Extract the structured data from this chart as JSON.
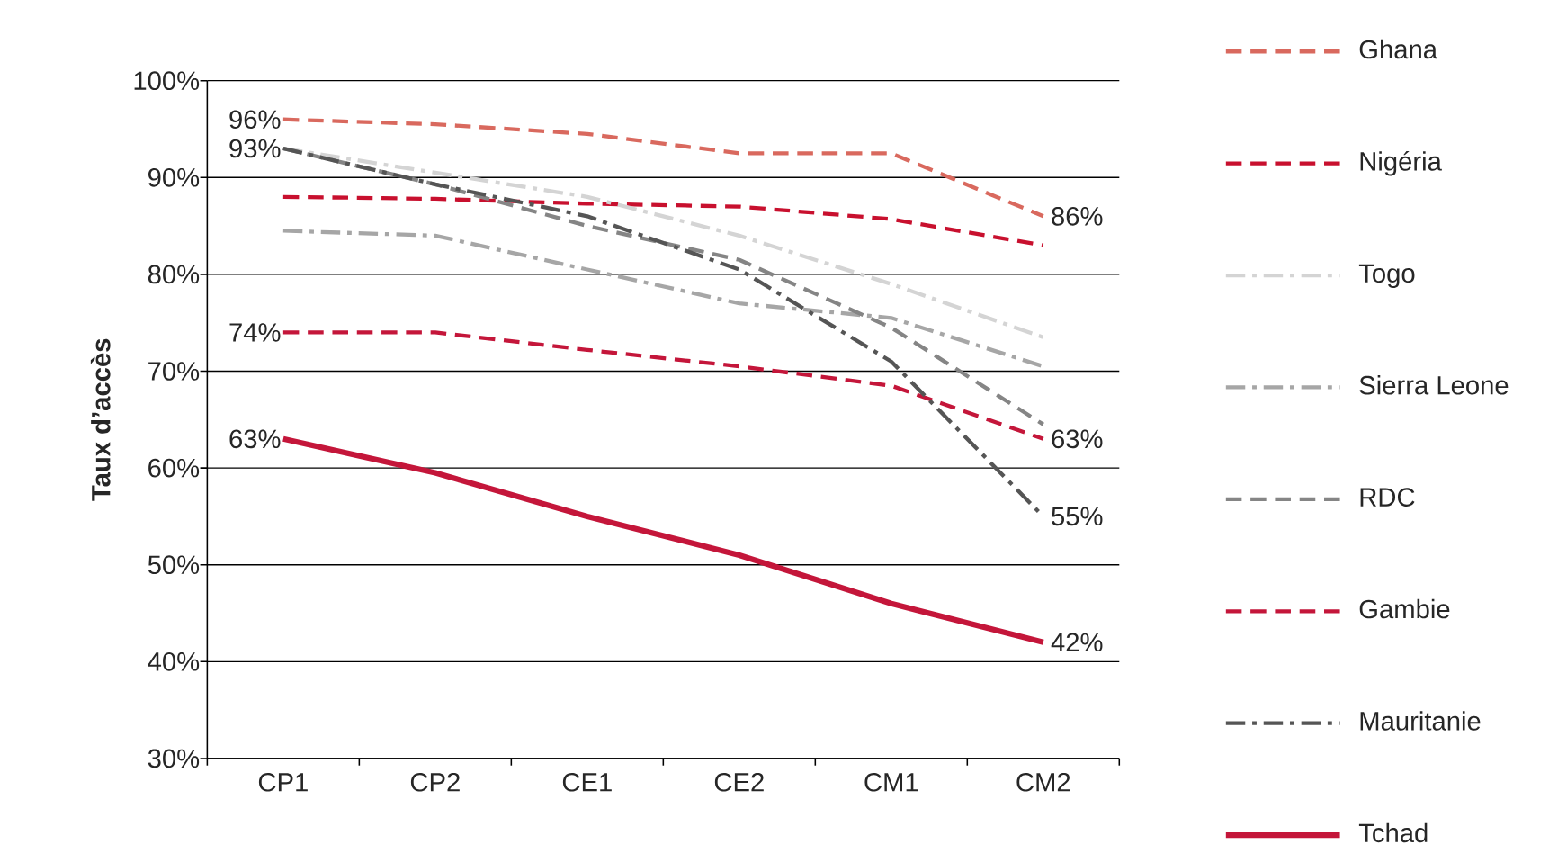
{
  "chart_data": {
    "type": "line",
    "ylabel": "Taux d’accès",
    "categories": [
      "CP1",
      "CP2",
      "CE1",
      "CE2",
      "CM1",
      "CM2"
    ],
    "ylim": [
      30,
      100
    ],
    "yticks": [
      {
        "value": 30,
        "label": "30%"
      },
      {
        "value": 40,
        "label": "40%"
      },
      {
        "value": 50,
        "label": "50%"
      },
      {
        "value": 60,
        "label": "60%"
      },
      {
        "value": 70,
        "label": "70%"
      },
      {
        "value": 80,
        "label": "80%"
      },
      {
        "value": 90,
        "label": "90%"
      },
      {
        "value": 100,
        "label": "100%"
      }
    ],
    "grid": "y",
    "legend": "right",
    "series": [
      {
        "name": "Ghana",
        "color": "#d9695e",
        "line_style": "dashed",
        "values": [
          96,
          95.5,
          94.5,
          92.5,
          92.5,
          86
        ],
        "value_labels": [
          "96%",
          null,
          null,
          null,
          null,
          "86%"
        ]
      },
      {
        "name": "Nigéria",
        "color": "#c8102e",
        "line_style": "dashed",
        "values": [
          88,
          87.8,
          87.3,
          87,
          85.7,
          83
        ]
      },
      {
        "name": "Togo",
        "color": "#d4d4d4",
        "line_style": "dashdot",
        "values": [
          93,
          90.5,
          88,
          84,
          79,
          73.5
        ]
      },
      {
        "name": "Sierra Leone",
        "color": "#a6a6a6",
        "line_style": "dashdot",
        "values": [
          84.5,
          84,
          80.5,
          77,
          75.5,
          70.5
        ]
      },
      {
        "name": "RDC",
        "color": "#858585",
        "line_style": "dashed",
        "values": [
          93,
          89.3,
          85,
          81.5,
          74.5,
          64.5
        ]
      },
      {
        "name": "Gambie",
        "color": "#c4163a",
        "line_style": "dashed",
        "values": [
          74,
          74,
          72.2,
          70.5,
          68.5,
          63
        ],
        "value_labels": [
          "74%",
          null,
          null,
          null,
          null,
          "63%"
        ]
      },
      {
        "name": "Mauritanie",
        "color": "#555555",
        "line_style": "dashdot",
        "values": [
          93,
          89.3,
          86,
          80.5,
          71,
          55
        ],
        "value_labels": [
          "93%",
          null,
          null,
          null,
          null,
          "55%"
        ]
      },
      {
        "name": "Tchad",
        "color": "#c4163a",
        "line_style": "solid",
        "values": [
          63,
          59.5,
          55,
          51,
          46,
          42
        ],
        "value_labels": [
          "63%",
          null,
          null,
          null,
          null,
          "42%"
        ]
      }
    ]
  }
}
